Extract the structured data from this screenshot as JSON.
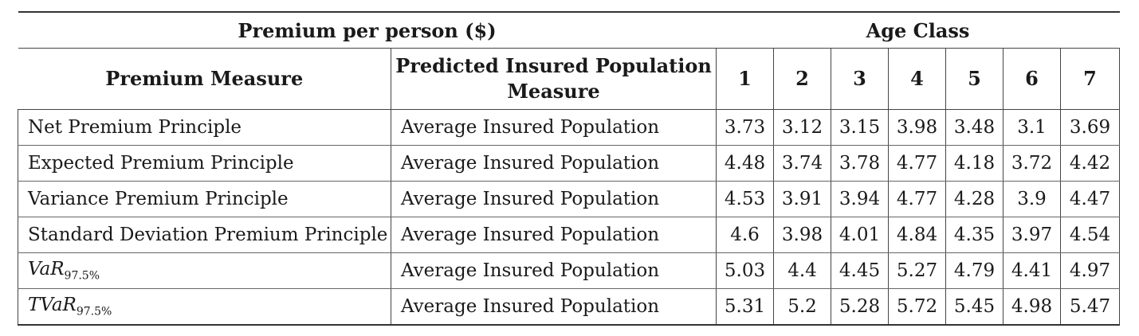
{
  "table": {
    "super_header": {
      "left": "Premium per person ($)",
      "right": "Age Class"
    },
    "headers": {
      "measure": "Premium Measure",
      "population_line1": "Predicted Insured Population",
      "population_line2": "Measure",
      "age_classes": [
        "1",
        "2",
        "3",
        "4",
        "5",
        "6",
        "7"
      ]
    },
    "rows": [
      {
        "measure": "Net Premium Principle",
        "population": "Average Insured Population",
        "values": [
          "3.73",
          "3.12",
          "3.15",
          "3.98",
          "3.48",
          "3.1",
          "3.69"
        ]
      },
      {
        "measure": "Expected Premium Principle",
        "population": "Average Insured Population",
        "values": [
          "4.48",
          "3.74",
          "3.78",
          "4.77",
          "4.18",
          "3.72",
          "4.42"
        ]
      },
      {
        "measure": "Variance Premium Principle",
        "population": "Average Insured Population",
        "values": [
          "4.53",
          "3.91",
          "3.94",
          "4.77",
          "4.28",
          "3.9",
          "4.47"
        ]
      },
      {
        "measure": "Standard Deviation Premium Principle",
        "population": "Average Insured Population",
        "values": [
          "4.6",
          "3.98",
          "4.01",
          "4.84",
          "4.35",
          "3.97",
          "4.54"
        ]
      },
      {
        "measure_main": "VaR",
        "measure_sub": "97.5%",
        "population": "Average Insured Population",
        "values": [
          "5.03",
          "4.4",
          "4.45",
          "5.27",
          "4.79",
          "4.41",
          "4.97"
        ]
      },
      {
        "measure_main": "TVaR",
        "measure_sub": "97.5%",
        "population": "Average Insured Population",
        "values": [
          "5.31",
          "5.2",
          "5.28",
          "5.72",
          "5.45",
          "4.98",
          "5.47"
        ]
      }
    ]
  }
}
